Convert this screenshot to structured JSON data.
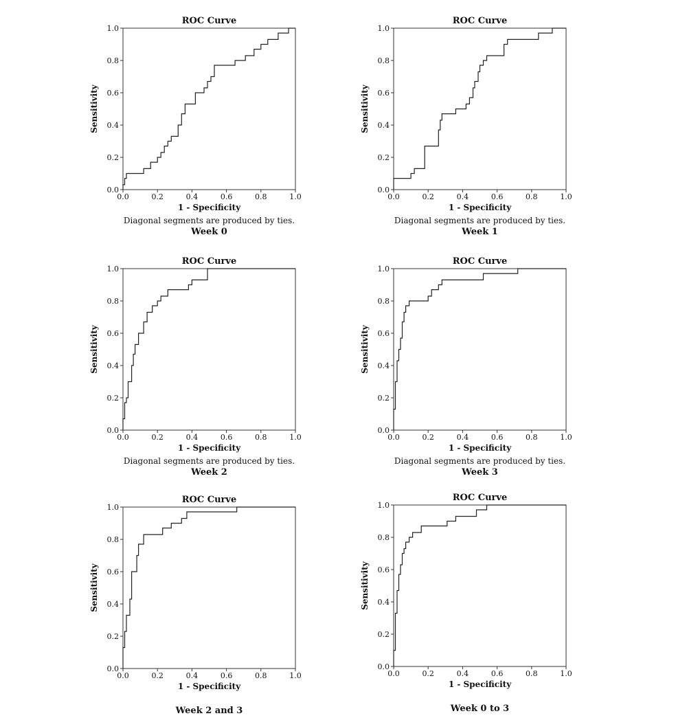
{
  "chart_data": [
    {
      "type": "line",
      "title": "ROC Curve",
      "xlabel": "1 - Specificity",
      "ylabel": "Sensitivity",
      "note": "Diagonal segments are produced by ties.",
      "caption": "Week 0",
      "xlim": [
        0,
        1
      ],
      "ylim": [
        0,
        1
      ],
      "xticks": [
        "0.0",
        "0.2",
        "0.4",
        "0.6",
        "0.8",
        "1.0"
      ],
      "yticks": [
        "0.0",
        "0.2",
        "0.4",
        "0.6",
        "0.8",
        "1.0"
      ],
      "series": [
        {
          "x": [
            0,
            0,
            0.01,
            0.01,
            0.02,
            0.02,
            0.12,
            0.12,
            0.16,
            0.16,
            0.2,
            0.2,
            0.22,
            0.22,
            0.24,
            0.24,
            0.26,
            0.26,
            0.28,
            0.28,
            0.32,
            0.32,
            0.34,
            0.34,
            0.36,
            0.36,
            0.42,
            0.42,
            0.47,
            0.47,
            0.49,
            0.49,
            0.51,
            0.51,
            0.53,
            0.53,
            0.65,
            0.65,
            0.71,
            0.71,
            0.76,
            0.76,
            0.8,
            0.8,
            0.84,
            0.84,
            0.9,
            0.9,
            0.96,
            0.96,
            1.0
          ],
          "y": [
            0,
            0.03,
            0.03,
            0.07,
            0.07,
            0.1,
            0.1,
            0.13,
            0.13,
            0.17,
            0.17,
            0.2,
            0.2,
            0.23,
            0.23,
            0.27,
            0.27,
            0.3,
            0.3,
            0.33,
            0.33,
            0.4,
            0.4,
            0.47,
            0.47,
            0.53,
            0.53,
            0.6,
            0.6,
            0.63,
            0.63,
            0.67,
            0.67,
            0.7,
            0.7,
            0.77,
            0.77,
            0.8,
            0.8,
            0.83,
            0.83,
            0.87,
            0.87,
            0.9,
            0.9,
            0.93,
            0.93,
            0.97,
            0.97,
            1.0,
            1.0
          ]
        }
      ]
    },
    {
      "type": "line",
      "title": "ROC Curve",
      "xlabel": "1 - Specificity",
      "ylabel": "Sensitivity",
      "note": "Diagonal segments are produced by ties.",
      "caption": "Week 1",
      "xlim": [
        0,
        1
      ],
      "ylim": [
        0,
        1
      ],
      "xticks": [
        "0.0",
        "0.2",
        "0.4",
        "0.6",
        "0.8",
        "1.0"
      ],
      "yticks": [
        "0.0",
        "0.2",
        "0.4",
        "0.6",
        "0.8",
        "1.0"
      ],
      "series": [
        {
          "x": [
            0,
            0,
            0.1,
            0.1,
            0.12,
            0.12,
            0.18,
            0.18,
            0.26,
            0.26,
            0.27,
            0.27,
            0.28,
            0.28,
            0.36,
            0.36,
            0.42,
            0.42,
            0.44,
            0.44,
            0.46,
            0.46,
            0.47,
            0.47,
            0.49,
            0.49,
            0.5,
            0.5,
            0.52,
            0.52,
            0.54,
            0.54,
            0.64,
            0.64,
            0.66,
            0.66,
            0.84,
            0.84,
            0.92,
            0.92,
            1.0
          ],
          "y": [
            0,
            0.07,
            0.07,
            0.1,
            0.1,
            0.13,
            0.13,
            0.27,
            0.27,
            0.37,
            0.37,
            0.43,
            0.43,
            0.47,
            0.47,
            0.5,
            0.5,
            0.53,
            0.53,
            0.57,
            0.57,
            0.63,
            0.63,
            0.67,
            0.67,
            0.73,
            0.73,
            0.77,
            0.77,
            0.8,
            0.8,
            0.83,
            0.83,
            0.9,
            0.9,
            0.93,
            0.93,
            0.97,
            0.97,
            1.0,
            1.0
          ]
        }
      ]
    },
    {
      "type": "line",
      "title": "ROC Curve",
      "xlabel": "1 - Specificity",
      "ylabel": "Sensitivity",
      "note": "Diagonal segments are produced by ties.",
      "caption": "Week 2",
      "xlim": [
        0,
        1
      ],
      "ylim": [
        0,
        1
      ],
      "xticks": [
        "0.0",
        "0.2",
        "0.4",
        "0.6",
        "0.8",
        "1.0"
      ],
      "yticks": [
        "0.0",
        "0.2",
        "0.4",
        "0.6",
        "0.8",
        "1.0"
      ],
      "series": [
        {
          "x": [
            0,
            0,
            0.01,
            0.01,
            0.02,
            0.02,
            0.03,
            0.03,
            0.05,
            0.05,
            0.06,
            0.06,
            0.07,
            0.07,
            0.09,
            0.09,
            0.12,
            0.12,
            0.14,
            0.14,
            0.17,
            0.17,
            0.2,
            0.2,
            0.22,
            0.22,
            0.26,
            0.26,
            0.38,
            0.38,
            0.4,
            0.4,
            0.49,
            0.49,
            1.0
          ],
          "y": [
            0,
            0.07,
            0.07,
            0.17,
            0.17,
            0.2,
            0.2,
            0.3,
            0.3,
            0.4,
            0.4,
            0.47,
            0.47,
            0.53,
            0.53,
            0.6,
            0.6,
            0.67,
            0.67,
            0.73,
            0.73,
            0.77,
            0.77,
            0.8,
            0.8,
            0.83,
            0.83,
            0.87,
            0.87,
            0.9,
            0.9,
            0.93,
            0.93,
            1.0,
            1.0
          ]
        }
      ]
    },
    {
      "type": "line",
      "title": "ROC Curve",
      "xlabel": "1 - Specificity",
      "ylabel": "Sensitivity",
      "note": "Diagonal segments are produced by ties.",
      "caption": "Week 3",
      "xlim": [
        0,
        1
      ],
      "ylim": [
        0,
        1
      ],
      "xticks": [
        "0.0",
        "0.2",
        "0.4",
        "0.6",
        "0.8",
        "1.0"
      ],
      "yticks": [
        "0.0",
        "0.2",
        "0.4",
        "0.6",
        "0.8",
        "1.0"
      ],
      "series": [
        {
          "x": [
            0,
            0,
            0.01,
            0.01,
            0.02,
            0.02,
            0.03,
            0.03,
            0.04,
            0.04,
            0.05,
            0.05,
            0.06,
            0.06,
            0.07,
            0.07,
            0.09,
            0.09,
            0.2,
            0.2,
            0.22,
            0.22,
            0.26,
            0.26,
            0.28,
            0.28,
            0.52,
            0.52,
            0.72,
            0.72,
            1.0
          ],
          "y": [
            0,
            0.13,
            0.13,
            0.3,
            0.3,
            0.43,
            0.43,
            0.5,
            0.5,
            0.57,
            0.57,
            0.67,
            0.67,
            0.73,
            0.73,
            0.77,
            0.77,
            0.8,
            0.8,
            0.83,
            0.83,
            0.87,
            0.87,
            0.9,
            0.9,
            0.93,
            0.93,
            0.97,
            0.97,
            1.0,
            1.0
          ]
        }
      ]
    },
    {
      "type": "line",
      "title": "ROC Curve",
      "xlabel": "1 - Specificity",
      "ylabel": "Sensitivity",
      "note": "",
      "caption": "Week 2 and 3",
      "xlim": [
        0,
        1
      ],
      "ylim": [
        0,
        1
      ],
      "xticks": [
        "0.0",
        "0.2",
        "0.4",
        "0.6",
        "0.8",
        "1.0"
      ],
      "yticks": [
        "0.0",
        "0.2",
        "0.4",
        "0.6",
        "0.8",
        "1.0"
      ],
      "series": [
        {
          "x": [
            0,
            0,
            0.01,
            0.01,
            0.02,
            0.02,
            0.04,
            0.04,
            0.05,
            0.05,
            0.08,
            0.08,
            0.09,
            0.09,
            0.12,
            0.12,
            0.23,
            0.23,
            0.28,
            0.28,
            0.34,
            0.34,
            0.37,
            0.37,
            0.66,
            0.66,
            1.0
          ],
          "y": [
            0,
            0.13,
            0.13,
            0.23,
            0.23,
            0.33,
            0.33,
            0.43,
            0.43,
            0.6,
            0.6,
            0.7,
            0.7,
            0.77,
            0.77,
            0.83,
            0.83,
            0.87,
            0.87,
            0.9,
            0.9,
            0.93,
            0.93,
            0.97,
            0.97,
            1.0,
            1.0
          ]
        }
      ]
    },
    {
      "type": "line",
      "title": "ROC Curve",
      "xlabel": "1 - Specificity",
      "ylabel": "Sensitivity",
      "note": "",
      "caption": "Week 0 to 3",
      "xlim": [
        0,
        1
      ],
      "ylim": [
        0,
        1
      ],
      "xticks": [
        "0.0",
        "0.2",
        "0.4",
        "0.6",
        "0.8",
        "1.0"
      ],
      "yticks": [
        "0.0",
        "0.2",
        "0.4",
        "0.6",
        "0.8",
        "1.0"
      ],
      "series": [
        {
          "x": [
            0,
            0,
            0.01,
            0.01,
            0.02,
            0.02,
            0.03,
            0.03,
            0.04,
            0.04,
            0.05,
            0.05,
            0.06,
            0.06,
            0.07,
            0.07,
            0.09,
            0.09,
            0.11,
            0.11,
            0.16,
            0.16,
            0.31,
            0.31,
            0.36,
            0.36,
            0.48,
            0.48,
            0.54,
            0.54,
            1.0
          ],
          "y": [
            0,
            0.1,
            0.1,
            0.33,
            0.33,
            0.47,
            0.47,
            0.57,
            0.57,
            0.63,
            0.63,
            0.7,
            0.7,
            0.73,
            0.73,
            0.77,
            0.77,
            0.8,
            0.8,
            0.83,
            0.83,
            0.87,
            0.87,
            0.9,
            0.9,
            0.93,
            0.93,
            0.97,
            0.97,
            1.0,
            1.0
          ]
        }
      ]
    }
  ]
}
